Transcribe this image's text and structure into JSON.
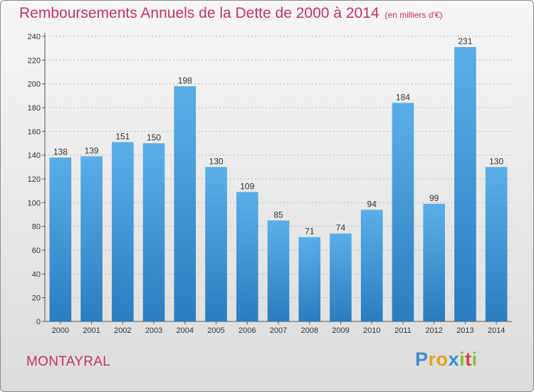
{
  "chart_data": {
    "type": "bar",
    "title": "Remboursements Annuels de la Dette de 2000 à 2014",
    "unit_label": "(en milliers d'€)",
    "categories": [
      "2000",
      "2001",
      "2002",
      "2003",
      "2004",
      "2005",
      "2006",
      "2007",
      "2008",
      "2009",
      "2010",
      "2011",
      "2012",
      "2013",
      "2014"
    ],
    "values": [
      138,
      139,
      151,
      150,
      198,
      130,
      109,
      85,
      71,
      74,
      94,
      184,
      99,
      231,
      130
    ],
    "ylim": [
      0,
      240
    ],
    "yticks": [
      0,
      20,
      40,
      60,
      80,
      100,
      120,
      140,
      160,
      180,
      200,
      220,
      240
    ],
    "grid": true,
    "xlabel": "",
    "ylabel": "",
    "bar_color_top": "#5aaee8",
    "bar_color_bottom": "#2a7ec0"
  },
  "town": "MONTAYRAL",
  "logo": {
    "letters": [
      "P",
      "r",
      "o",
      "x",
      "i",
      "t",
      "i"
    ],
    "colors": [
      "#3a8fd0",
      "#e8a020",
      "#e8a020",
      "#3a8fd0",
      "#8ac040",
      "#e04040",
      "#8ac040"
    ]
  }
}
